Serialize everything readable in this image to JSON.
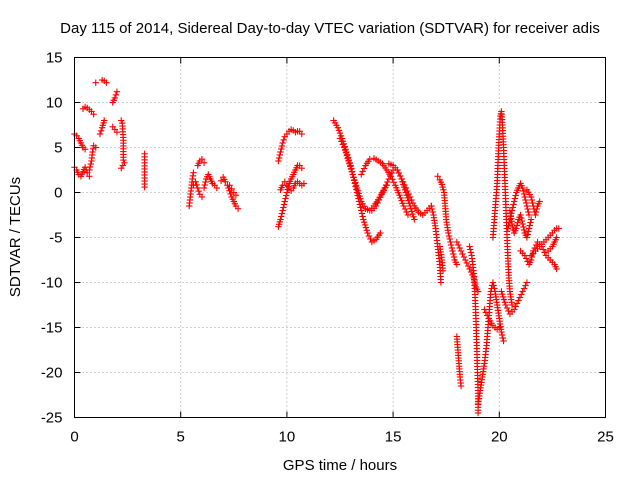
{
  "chart_data": {
    "type": "scatter",
    "title": "Day 115 of 2014, Sidereal Day-to-day VTEC variation (SDTVAR) for receiver adis",
    "xlabel": "GPS time / hours",
    "ylabel": "SDTVAR / TECUs",
    "xlim": [
      0,
      25
    ],
    "ylim": [
      -25,
      15
    ],
    "xticks": [
      "0",
      "5",
      "10",
      "15",
      "20",
      "25"
    ],
    "yticks": [
      "15",
      "10",
      "5",
      "0",
      "-5",
      "-10",
      "-15",
      "-20",
      "-25"
    ],
    "grid": true,
    "marker": "plus",
    "color": "#ff0000",
    "tracks": [
      [
        [
          0.0,
          6.5
        ],
        [
          0.1,
          6.3
        ],
        [
          0.2,
          6.0
        ],
        [
          0.3,
          5.5
        ],
        [
          0.4,
          5.0
        ],
        [
          0.5,
          4.8
        ]
      ],
      [
        [
          0.0,
          2.8
        ],
        [
          0.1,
          2.5
        ],
        [
          0.2,
          2.0
        ],
        [
          0.3,
          1.8
        ],
        [
          0.4,
          2.3
        ],
        [
          0.5,
          2.8
        ],
        [
          0.6,
          2.2
        ],
        [
          0.7,
          1.8
        ]
      ],
      [
        [
          0.4,
          9.3
        ],
        [
          0.5,
          9.5
        ],
        [
          0.6,
          9.4
        ],
        [
          0.7,
          9.2
        ],
        [
          0.8,
          9.0
        ],
        [
          0.9,
          8.7
        ]
      ],
      [
        [
          0.7,
          2.5
        ],
        [
          0.8,
          3.5
        ],
        [
          0.85,
          4.5
        ],
        [
          0.9,
          5.2
        ],
        [
          1.0,
          5.0
        ]
      ],
      [
        [
          1.0,
          12.2
        ]
      ],
      [
        [
          1.2,
          6.5
        ],
        [
          1.3,
          7.2
        ],
        [
          1.4,
          8.0
        ]
      ],
      [
        [
          1.3,
          12.5
        ],
        [
          1.4,
          12.4
        ],
        [
          1.5,
          12.2
        ]
      ],
      [
        [
          1.8,
          10.0
        ],
        [
          1.9,
          10.5
        ],
        [
          2.0,
          11.2
        ]
      ],
      [
        [
          1.8,
          7.3
        ],
        [
          1.9,
          7.0
        ],
        [
          2.0,
          6.7
        ]
      ],
      [
        [
          2.2,
          8.0
        ],
        [
          2.25,
          7.7
        ],
        [
          2.3,
          5.8
        ],
        [
          2.3,
          3.6
        ],
        [
          2.35,
          3.3
        ],
        [
          2.2,
          2.7
        ]
      ],
      [
        [
          3.3,
          4.3
        ],
        [
          3.3,
          0.6
        ]
      ],
      [
        [
          5.4,
          -1.5
        ],
        [
          5.45,
          -0.5
        ],
        [
          5.5,
          0.5
        ],
        [
          5.55,
          1.5
        ],
        [
          5.6,
          2.2
        ]
      ],
      [
        [
          5.6,
          0.8
        ],
        [
          5.7,
          1.2
        ],
        [
          5.8,
          0.5
        ],
        [
          5.9,
          -0.2
        ],
        [
          6.0,
          -0.5
        ]
      ],
      [
        [
          5.8,
          3.0
        ],
        [
          5.9,
          3.5
        ],
        [
          6.0,
          3.7
        ],
        [
          6.1,
          3.3
        ]
      ],
      [
        [
          6.1,
          0.5
        ],
        [
          6.2,
          1.5
        ],
        [
          6.3,
          2.0
        ],
        [
          6.4,
          1.5
        ],
        [
          6.5,
          1.0
        ],
        [
          6.6,
          0.8
        ],
        [
          6.7,
          0.5
        ]
      ],
      [
        [
          6.9,
          1.3
        ],
        [
          7.0,
          1.7
        ],
        [
          7.1,
          1.2
        ],
        [
          7.2,
          0.8
        ],
        [
          7.3,
          0.2
        ],
        [
          7.4,
          -0.5
        ],
        [
          7.5,
          -1.0
        ],
        [
          7.6,
          -1.5
        ],
        [
          7.7,
          -1.8
        ]
      ],
      [
        [
          7.3,
          0.8
        ],
        [
          7.4,
          0.4
        ],
        [
          7.5,
          0.0
        ],
        [
          7.6,
          -0.3
        ]
      ],
      [
        [
          9.6,
          -3.8
        ],
        [
          9.7,
          -3.0
        ],
        [
          9.8,
          -2.0
        ],
        [
          9.9,
          -1.0
        ],
        [
          10.0,
          0.0
        ],
        [
          10.1,
          1.0
        ],
        [
          10.2,
          1.5
        ],
        [
          10.3,
          2.0
        ],
        [
          10.4,
          2.5
        ],
        [
          10.5,
          3.0
        ],
        [
          10.6,
          3.0
        ],
        [
          10.7,
          2.7
        ]
      ],
      [
        [
          9.6,
          3.5
        ],
        [
          9.7,
          4.5
        ],
        [
          9.8,
          5.5
        ],
        [
          9.9,
          6.2
        ],
        [
          10.0,
          6.5
        ],
        [
          10.1,
          6.8
        ],
        [
          10.2,
          7.0
        ],
        [
          10.3,
          6.9
        ],
        [
          10.4,
          6.7
        ],
        [
          10.5,
          6.8
        ],
        [
          10.6,
          6.8
        ],
        [
          10.7,
          6.5
        ]
      ],
      [
        [
          9.7,
          0.3
        ],
        [
          9.8,
          0.8
        ],
        [
          9.9,
          1.2
        ],
        [
          10.0,
          0.8
        ],
        [
          10.1,
          0.5
        ],
        [
          10.2,
          0.2
        ],
        [
          10.3,
          0.5
        ],
        [
          10.4,
          1.0
        ],
        [
          10.5,
          1.2
        ],
        [
          10.6,
          1.0
        ],
        [
          10.7,
          0.8
        ],
        [
          10.8,
          1.0
        ]
      ],
      [
        [
          12.2,
          8.0
        ],
        [
          12.4,
          7.2
        ],
        [
          12.6,
          6.0
        ],
        [
          12.8,
          4.5
        ],
        [
          13.0,
          3.0
        ],
        [
          13.2,
          1.0
        ],
        [
          13.4,
          -1.0
        ],
        [
          13.6,
          -3.0
        ],
        [
          13.8,
          -4.5
        ],
        [
          14.0,
          -5.5
        ],
        [
          14.2,
          -5.2
        ],
        [
          14.4,
          -4.5
        ]
      ],
      [
        [
          12.5,
          6.0
        ],
        [
          12.7,
          5.0
        ],
        [
          12.9,
          3.5
        ],
        [
          13.1,
          2.0
        ],
        [
          13.3,
          0.5
        ],
        [
          13.5,
          -1.0
        ],
        [
          13.7,
          -1.8
        ],
        [
          13.9,
          -2.0
        ],
        [
          14.1,
          -1.5
        ],
        [
          14.3,
          -0.8
        ],
        [
          14.5,
          0.0
        ],
        [
          14.7,
          0.8
        ]
      ],
      [
        [
          13.5,
          2.0
        ],
        [
          13.7,
          3.0
        ],
        [
          13.9,
          3.7
        ],
        [
          14.1,
          3.8
        ],
        [
          14.3,
          3.5
        ],
        [
          14.5,
          3.2
        ],
        [
          14.7,
          2.5
        ],
        [
          14.9,
          1.8
        ],
        [
          15.1,
          0.8
        ],
        [
          15.3,
          -0.3
        ],
        [
          15.5,
          -1.5
        ],
        [
          15.7,
          -2.5
        ]
      ],
      [
        [
          14.0,
          -2.0
        ],
        [
          14.2,
          -1.5
        ],
        [
          14.4,
          -0.5
        ],
        [
          14.6,
          0.5
        ],
        [
          14.8,
          1.5
        ],
        [
          15.0,
          2.5
        ],
        [
          15.2,
          2.5
        ],
        [
          15.4,
          1.5
        ],
        [
          15.6,
          0.0
        ],
        [
          15.8,
          -1.5
        ],
        [
          16.0,
          -3.0
        ]
      ],
      [
        [
          14.8,
          3.2
        ],
        [
          15.0,
          3.0
        ],
        [
          15.2,
          2.5
        ],
        [
          15.4,
          1.5
        ],
        [
          15.6,
          0.5
        ],
        [
          15.8,
          -0.5
        ],
        [
          16.0,
          -1.5
        ],
        [
          16.2,
          -2.2
        ],
        [
          16.4,
          -2.5
        ],
        [
          16.6,
          -2.0
        ],
        [
          16.8,
          -1.5
        ]
      ],
      [
        [
          16.8,
          -1.5
        ],
        [
          16.9,
          -2.5
        ],
        [
          17.0,
          -4.0
        ],
        [
          17.1,
          -6.0
        ],
        [
          17.2,
          -8.0
        ],
        [
          17.25,
          -10.0
        ]
      ],
      [
        [
          17.1,
          1.8
        ],
        [
          17.2,
          1.4
        ],
        [
          17.3,
          0.9
        ],
        [
          17.4,
          0.0
        ],
        [
          17.45,
          -1.5
        ],
        [
          17.5,
          -3.0
        ],
        [
          17.6,
          -4.5
        ],
        [
          17.7,
          -5.5
        ],
        [
          17.8,
          -6.5
        ],
        [
          17.9,
          -7.5
        ],
        [
          18.0,
          -8.0
        ]
      ],
      [
        [
          17.2,
          -6.0
        ],
        [
          17.3,
          -7.5
        ],
        [
          17.35,
          -8.7
        ]
      ],
      [
        [
          18.0,
          -5.5
        ],
        [
          18.2,
          -6.5
        ],
        [
          18.4,
          -7.5
        ],
        [
          18.6,
          -8.5
        ],
        [
          18.8,
          -9.5
        ],
        [
          18.9,
          -10.5
        ],
        [
          19.0,
          -11.0
        ]
      ],
      [
        [
          18.0,
          -16.0
        ],
        [
          18.05,
          -17.5
        ],
        [
          18.1,
          -19.0
        ],
        [
          18.15,
          -20.5
        ],
        [
          18.2,
          -21.5
        ]
      ],
      [
        [
          18.6,
          -6.0
        ],
        [
          18.7,
          -7.0
        ],
        [
          18.75,
          -8.0
        ],
        [
          18.8,
          -9.0
        ],
        [
          18.85,
          -11.0
        ],
        [
          18.9,
          -14.0
        ],
        [
          18.95,
          -18.0
        ],
        [
          19.0,
          -22.0
        ],
        [
          19.0,
          -24.5
        ]
      ],
      [
        [
          19.0,
          -23.5
        ],
        [
          19.1,
          -22.0
        ],
        [
          19.2,
          -20.5
        ],
        [
          19.3,
          -19.0
        ],
        [
          19.4,
          -17.0
        ],
        [
          19.5,
          -14.0
        ],
        [
          19.6,
          -11.0
        ],
        [
          19.7,
          -10.0
        ],
        [
          19.8,
          -11.0
        ],
        [
          19.9,
          -12.5
        ],
        [
          20.0,
          -14.0
        ],
        [
          20.1,
          -15.5
        ],
        [
          20.2,
          -16.5
        ]
      ],
      [
        [
          19.3,
          -13.0
        ],
        [
          19.5,
          -14.0
        ],
        [
          19.7,
          -14.8
        ],
        [
          19.9,
          -15.2
        ],
        [
          20.0,
          -15.0
        ]
      ],
      [
        [
          19.7,
          -5.0
        ],
        [
          19.8,
          -2.0
        ],
        [
          19.9,
          1.0
        ],
        [
          19.95,
          4.0
        ],
        [
          20.0,
          6.5
        ],
        [
          20.05,
          8.5
        ],
        [
          20.1,
          9.0
        ],
        [
          20.15,
          7.5
        ],
        [
          20.2,
          5.0
        ],
        [
          20.25,
          2.0
        ],
        [
          20.3,
          -1.0
        ],
        [
          20.35,
          -4.0
        ],
        [
          20.4,
          -7.0
        ],
        [
          20.45,
          -9.5
        ],
        [
          20.5,
          -11.0
        ],
        [
          20.6,
          -12.5
        ]
      ],
      [
        [
          20.1,
          -11.0
        ],
        [
          20.3,
          -12.5
        ],
        [
          20.5,
          -13.5
        ],
        [
          20.7,
          -13.0
        ],
        [
          20.9,
          -12.0
        ],
        [
          21.1,
          -11.0
        ],
        [
          21.3,
          -10.0
        ]
      ],
      [
        [
          20.4,
          -4.0
        ],
        [
          20.5,
          -3.0
        ],
        [
          20.6,
          -2.0
        ],
        [
          20.7,
          -1.0
        ],
        [
          20.8,
          0.0
        ],
        [
          20.9,
          0.5
        ],
        [
          21.0,
          1.0
        ],
        [
          21.1,
          0.5
        ],
        [
          21.2,
          -0.5
        ],
        [
          21.3,
          -1.5
        ],
        [
          21.4,
          -2.5
        ]
      ],
      [
        [
          20.5,
          -2.0
        ],
        [
          20.6,
          -3.5
        ],
        [
          20.7,
          -4.5
        ],
        [
          20.8,
          -4.0
        ],
        [
          20.9,
          -3.0
        ],
        [
          21.0,
          -2.5
        ],
        [
          21.1,
          -3.5
        ],
        [
          21.2,
          -4.5
        ],
        [
          21.3,
          -5.0
        ],
        [
          21.4,
          -4.0
        ],
        [
          21.5,
          -3.0
        ]
      ],
      [
        [
          21.0,
          -6.5
        ],
        [
          21.2,
          -7.0
        ],
        [
          21.4,
          -8.0
        ],
        [
          21.5,
          -7.5
        ],
        [
          21.6,
          -6.5
        ],
        [
          21.8,
          -5.5
        ],
        [
          22.0,
          -6.0
        ],
        [
          22.2,
          -7.0
        ],
        [
          22.4,
          -7.5
        ],
        [
          22.6,
          -8.0
        ],
        [
          22.7,
          -8.5
        ]
      ],
      [
        [
          21.3,
          0.3
        ],
        [
          21.5,
          -0.5
        ],
        [
          21.6,
          -1.5
        ],
        [
          21.7,
          -2.5
        ],
        [
          21.8,
          -1.5
        ],
        [
          21.9,
          -1.0
        ]
      ],
      [
        [
          21.5,
          -7.0
        ],
        [
          21.7,
          -6.5
        ],
        [
          21.9,
          -6.0
        ],
        [
          22.1,
          -5.5
        ],
        [
          22.3,
          -5.0
        ],
        [
          22.5,
          -4.5
        ],
        [
          22.6,
          -4.2
        ],
        [
          22.7,
          -4.0
        ],
        [
          22.8,
          -4.0
        ]
      ],
      [
        [
          22.3,
          -6.5
        ],
        [
          22.5,
          -6.0
        ],
        [
          22.6,
          -5.5
        ],
        [
          22.7,
          -5.0
        ]
      ]
    ]
  }
}
